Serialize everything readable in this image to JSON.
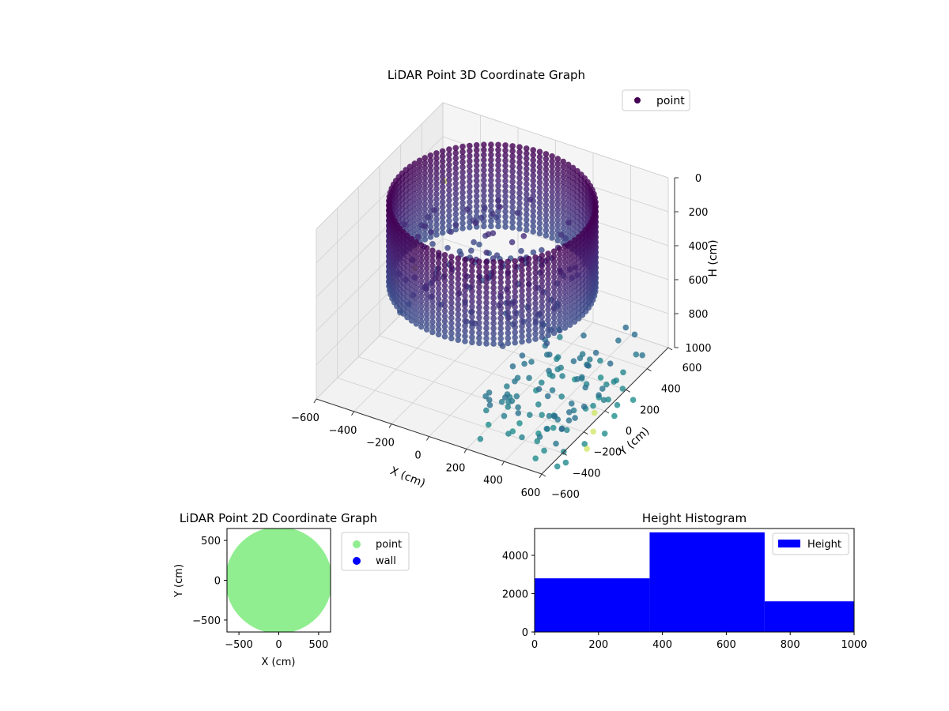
{
  "chart_data": [
    {
      "type": "scatter3d",
      "title": "LiDAR Point 3D Coordinate Graph",
      "xlabel": "X (cm)",
      "ylabel": "Y (cm)",
      "zlabel": "H (cm)",
      "xlim": [
        -600,
        600
      ],
      "ylim": [
        -600,
        600
      ],
      "zlim": [
        0,
        1000
      ],
      "x_ticks": [
        "−600",
        "−400",
        "−200",
        "0",
        "200",
        "400",
        "600"
      ],
      "y_ticks": [
        "−600",
        "−400",
        "−200",
        "0",
        "200",
        "400",
        "600"
      ],
      "z_ticks": [
        "0",
        "200",
        "400",
        "600",
        "800",
        "1000"
      ],
      "zaxis_inverted": true,
      "legend": [
        "point"
      ],
      "legend_position": "top-right",
      "colormap": "viridis",
      "grid": true,
      "series": [
        {
          "name": "point",
          "description_shape": "ring",
          "ring_radius": 480,
          "wall_height_range": [
            0,
            500
          ],
          "floor_height": 500,
          "outliers": [
            {
              "x": -620,
              "y": 650,
              "h": 500
            },
            {
              "x": -560,
              "y": 260,
              "h": 750
            },
            {
              "x": -580,
              "y": 120,
              "h": 750
            },
            {
              "x": 600,
              "y": -100,
              "h": 950
            },
            {
              "x": 650,
              "y": -200,
              "h": 980
            },
            {
              "x": 700,
              "y": -350,
              "h": 970
            }
          ]
        }
      ]
    },
    {
      "type": "scatter",
      "title": "LiDAR Point 2D Coordinate Graph",
      "xlabel": "X (cm)",
      "ylabel": "Y (cm)",
      "xlim": [
        -650,
        650
      ],
      "ylim": [
        -650,
        650
      ],
      "x_ticks": [
        "−500",
        "0",
        "500"
      ],
      "y_ticks": [
        "−500",
        "0",
        "500"
      ],
      "legend": [
        "point",
        "wall"
      ],
      "legend_position": "outside-right",
      "series": [
        {
          "name": "point",
          "color": "#90ee90",
          "shape": "filled disk",
          "radius": 620
        },
        {
          "name": "wall",
          "color": "#0000ff",
          "values": []
        }
      ]
    },
    {
      "type": "bar",
      "title": "Height Histogram",
      "xlabel": "",
      "ylabel": "",
      "xlim": [
        0,
        1000
      ],
      "ylim": [
        0,
        5400
      ],
      "x_ticks": [
        "0",
        "200",
        "400",
        "600",
        "800",
        "1000"
      ],
      "y_ticks": [
        "0",
        "2000",
        "4000"
      ],
      "legend": [
        "Height"
      ],
      "legend_position": "top-right",
      "color": "#0000ff",
      "bins": [
        {
          "from": 0,
          "to": 360,
          "count": 2800
        },
        {
          "from": 360,
          "to": 720,
          "count": 5200
        },
        {
          "from": 720,
          "to": 1080,
          "count": 1600
        }
      ]
    }
  ]
}
